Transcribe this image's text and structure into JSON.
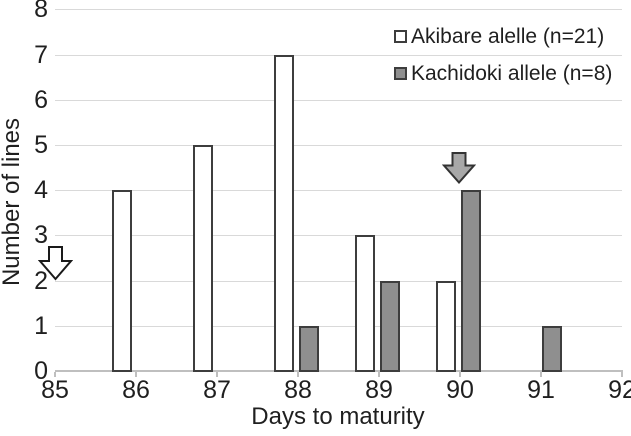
{
  "figure": {
    "background": "#ffffff",
    "text_color": "#1f1f1f"
  },
  "chart_data": {
    "type": "bar",
    "title": "",
    "xlabel": "Days to maturity",
    "ylabel": "Number of lines",
    "xlim": [
      85,
      92
    ],
    "ylim": [
      0,
      8
    ],
    "xticks": [
      85,
      86,
      87,
      88,
      89,
      90,
      91,
      92
    ],
    "yticks": [
      0,
      1,
      2,
      3,
      4,
      5,
      6,
      7,
      8
    ],
    "grid": "horizontal",
    "gridline_color": "#d9d9d9",
    "axis_color": "#bfbfbf",
    "legend_position": "top-right",
    "categories": [
      86,
      87,
      88,
      89,
      90,
      91
    ],
    "series": [
      {
        "name": "Akibare alelle (n=21)",
        "values": [
          4,
          5,
          7,
          3,
          2,
          0
        ],
        "fill": "#ffffff",
        "border": "#3d3d3d"
      },
      {
        "name": "Kachidoki allele (n=8)",
        "values": [
          0,
          0,
          1,
          2,
          4,
          1
        ],
        "fill": "#8f8f8f",
        "border": "#3d3d3d"
      }
    ],
    "annotations": [
      {
        "name": "akibare-allele-arrow",
        "shape": "down-block-arrow",
        "points_at_x": 85,
        "fill": "#ffffff",
        "stroke": "#1a1a1a"
      },
      {
        "name": "kachidoki-allele-arrow",
        "shape": "down-block-arrow",
        "points_at_x": 90.1,
        "fill": "#a8a8a8",
        "stroke": "#333333"
      }
    ]
  }
}
